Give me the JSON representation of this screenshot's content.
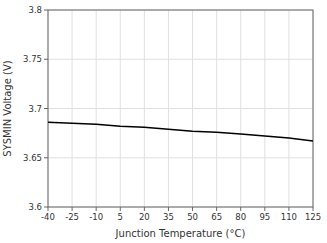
{
  "chart_data": {
    "type": "line",
    "xlabel": "Junction Temperature (°C)",
    "ylabel": "SYSMIN Voltage (V)",
    "x": [
      -40,
      -25,
      -10,
      5,
      20,
      35,
      50,
      65,
      80,
      95,
      110,
      125
    ],
    "values": [
      3.686,
      3.685,
      3.684,
      3.682,
      3.681,
      3.679,
      3.677,
      3.676,
      3.674,
      3.672,
      3.67,
      3.667
    ],
    "color": "#000000",
    "xlim": [
      -40,
      125
    ],
    "ylim": [
      3.6,
      3.8
    ],
    "xticks": [
      -40,
      -25,
      -10,
      5,
      20,
      35,
      50,
      65,
      80,
      95,
      110,
      125
    ],
    "yticks": [
      3.6,
      3.65,
      3.7,
      3.75,
      3.8
    ],
    "grid": true
  }
}
